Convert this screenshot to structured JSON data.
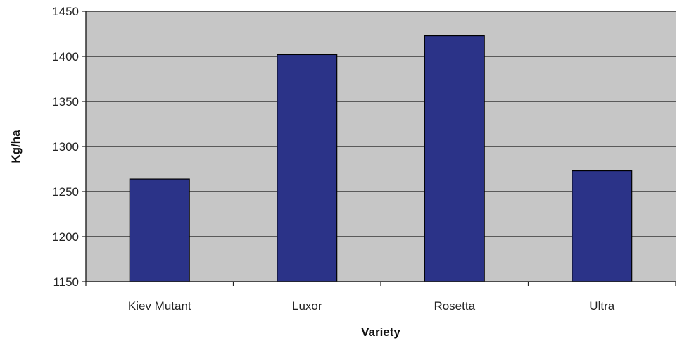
{
  "chart_data": {
    "type": "bar",
    "title": "",
    "xlabel": "Variety",
    "ylabel": "Kg/ha",
    "categories": [
      "Kiev Mutant",
      "Luxor",
      "Rosetta",
      "Ultra"
    ],
    "values": [
      1264,
      1402,
      1423,
      1273
    ],
    "ylim": [
      1150,
      1450
    ],
    "yticks": [
      1150,
      1200,
      1250,
      1300,
      1350,
      1400,
      1450
    ],
    "grid": true,
    "legend": "none",
    "colors": {
      "bar": "#2b3388",
      "plot_background": "#c6c6c6",
      "gridline": "#1a1a1a"
    }
  }
}
